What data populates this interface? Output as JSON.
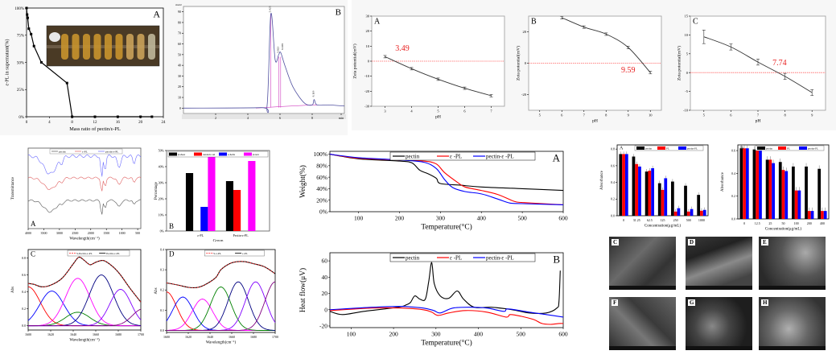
{
  "figure": {
    "panels_top": [
      "A",
      "B",
      "A",
      "B",
      "C"
    ],
    "sem_labels": [
      "C",
      "D",
      "E",
      "F",
      "G",
      "H"
    ]
  },
  "chart_data": [
    {
      "id": "binding",
      "type": "line",
      "panel_label": "A",
      "xlabel": "Mass ratio of pectin/ε-PL",
      "ylabel": "ε-PL in supernatant(%)",
      "xlim": [
        0,
        24
      ],
      "ylim": [
        0,
        100
      ],
      "xticks": [
        "0",
        "4",
        "8",
        "12",
        "16",
        "20",
        "24"
      ],
      "yticks": [
        "0%",
        "25%",
        "50%",
        "75%",
        "100%"
      ],
      "x": [
        0,
        0.1,
        0.2,
        0.4,
        0.8,
        1.3,
        2.6,
        7.1,
        8,
        12,
        16,
        20,
        22
      ],
      "y": [
        100,
        94,
        91,
        81,
        76,
        65,
        50,
        31,
        0,
        0,
        0,
        0,
        0
      ],
      "inset": "photo of test tubes"
    },
    {
      "id": "chromatogram",
      "type": "line",
      "panel_label": "B",
      "ylabel": "mAU",
      "xlim": [
        0,
        10
      ],
      "ylim": [
        -5,
        95
      ],
      "yticks": [
        "0",
        "10",
        "20",
        "30",
        "40",
        "50",
        "60",
        "70",
        "80",
        "90"
      ],
      "xticks": [
        "2",
        "4",
        "6",
        "8",
        "min"
      ],
      "peak_labels": [
        "5.425",
        "5.923",
        "6.039",
        "8.118"
      ],
      "x": [
        0,
        4.8,
        5.2,
        5.43,
        5.7,
        5.92,
        6.04,
        6.3,
        6.8,
        7.5,
        8.0,
        8.12,
        8.3,
        9,
        10
      ],
      "y": [
        0,
        0.5,
        3,
        88,
        45,
        50,
        52,
        40,
        20,
        5,
        3,
        8,
        3,
        3,
        2
      ]
    },
    {
      "id": "zeta_A",
      "type": "line",
      "panel_label": "A",
      "xlabel": "pH",
      "ylabel": "Zeta potential(mV)",
      "xlim": [
        2.5,
        7.5
      ],
      "ylim": [
        -30,
        30
      ],
      "xticks": [
        "3",
        "4",
        "5",
        "6",
        "7"
      ],
      "yticks": [
        "-30",
        "-20",
        "-10",
        "0",
        "10",
        "20",
        "30"
      ],
      "x": [
        3,
        4,
        5,
        6,
        7
      ],
      "y": [
        3,
        -5,
        -12,
        -18,
        -23
      ],
      "annotation": "3.49",
      "zero_line": true
    },
    {
      "id": "zeta_B",
      "type": "line",
      "panel_label": "B",
      "xlabel": "pH",
      "ylabel": "Zeta potential(mV)",
      "xlim": [
        4.5,
        10.5
      ],
      "ylim": [
        -30,
        30
      ],
      "xticks": [
        "5",
        "6",
        "7",
        "8",
        "9",
        "10"
      ],
      "yticks": [
        "-20",
        "0",
        "20"
      ],
      "x": [
        6,
        7,
        8,
        9,
        10
      ],
      "y": [
        29,
        23,
        18.5,
        10,
        -6
      ],
      "annotation": "9.59",
      "zero_line": true
    },
    {
      "id": "zeta_C",
      "type": "line",
      "panel_label": "C",
      "xlabel": "pH",
      "ylabel": "Zeta potential(mV)",
      "xlim": [
        4.5,
        9.5
      ],
      "ylim": [
        -10,
        15
      ],
      "xticks": [
        "5",
        "6",
        "7",
        "8",
        "9"
      ],
      "yticks": [
        "-10",
        "-5",
        "0",
        "5",
        "10",
        "15"
      ],
      "x": [
        5,
        6,
        7,
        8,
        9
      ],
      "y": [
        9.5,
        6.8,
        2.8,
        -1,
        -5.3
      ],
      "annotation": "7.74",
      "zero_line": true
    },
    {
      "id": "ftir",
      "type": "line",
      "panel_label": "A",
      "xlabel": "Wavelength(cm⁻¹)",
      "ylabel": "Transmittance",
      "xticks": [
        "4000",
        "3500",
        "3000",
        "2500",
        "2000",
        "1500",
        "1000",
        "500"
      ],
      "legend": [
        "pectin",
        "ε-PL",
        "pectin-ε-PL"
      ],
      "series_colors": [
        "#555555",
        "#e06060",
        "#6b6bff"
      ]
    },
    {
      "id": "secondary",
      "type": "bar",
      "panel_label": "B",
      "xlabel": "Group",
      "ylabel": "Percentage",
      "categories": [
        "ε-PL",
        "Pectin-ε-PL"
      ],
      "yticks": [
        "0%",
        "10%",
        "20%",
        "30%",
        "40%",
        "50%"
      ],
      "ylim": [
        0,
        50
      ],
      "series": [
        {
          "name": "β-sheet",
          "color": "#000000",
          "values": [
            36,
            31
          ]
        },
        {
          "name": "random coil",
          "color": "#ff0000",
          "values": [
            0,
            25.5
          ]
        },
        {
          "name": "α-helix",
          "color": "#0000ff",
          "values": [
            15,
            0
          ]
        },
        {
          "name": "β-turn",
          "color": "#ff00ff",
          "values": [
            49.5,
            43.5
          ]
        }
      ]
    },
    {
      "id": "fit_C",
      "type": "line",
      "panel_label": "C",
      "xlabel": "Wavelength(cm⁻¹)",
      "ylabel": "Abs",
      "xlim": [
        1600,
        1700
      ],
      "ylim": [
        -0.05,
        0.9
      ],
      "xticks": [
        "1600",
        "1620",
        "1640",
        "1660",
        "1680",
        "1700"
      ],
      "yticks": [
        "0.0",
        "0.2",
        "0.4",
        "0.6",
        "0.8"
      ],
      "legend": [
        "S-Pectin-ε-PL",
        "Pectin-ε-PL"
      ],
      "envelope": {
        "x": [
          1600,
          1605,
          1612,
          1620,
          1630,
          1640,
          1645,
          1650,
          1655,
          1660,
          1667,
          1675,
          1682,
          1690,
          1700
        ],
        "y": [
          0.5,
          0.49,
          0.46,
          0.48,
          0.56,
          0.73,
          0.81,
          0.77,
          0.72,
          0.75,
          0.77,
          0.7,
          0.6,
          0.45,
          0.28
        ]
      },
      "gaussians": [
        {
          "center": 1600,
          "height": 0.46,
          "width": 8,
          "color": "#ff0000"
        },
        {
          "center": 1621,
          "height": 0.41,
          "width": 8,
          "color": "#0000ff"
        },
        {
          "center": 1644,
          "height": 0.16,
          "width": 8,
          "color": "#008000"
        },
        {
          "center": 1644,
          "height": 0.56,
          "width": 8,
          "color": "#ff00ff"
        },
        {
          "center": 1665,
          "height": 0.6,
          "width": 8,
          "color": "#000080"
        },
        {
          "center": 1682,
          "height": 0.43,
          "width": 7,
          "color": "#8000ff"
        },
        {
          "center": 1702,
          "height": 0.2,
          "width": 7,
          "color": "#800080"
        }
      ]
    },
    {
      "id": "fit_D",
      "type": "line",
      "panel_label": "D",
      "xlabel": "Wavelength(cm⁻¹)",
      "ylabel": "Abs",
      "xlim": [
        1600,
        1700
      ],
      "ylim": [
        -0.01,
        0.4
      ],
      "xticks": [
        "1600",
        "1620",
        "1640",
        "1660",
        "1680",
        "1700"
      ],
      "yticks": [
        "0.0",
        "0.1",
        "0.2",
        "0.3",
        "0.4"
      ],
      "legend": [
        "S-ε-PL",
        "ε-PL"
      ],
      "envelope": {
        "x": [
          1600,
          1610,
          1620,
          1628,
          1635,
          1645,
          1650,
          1658,
          1665,
          1672,
          1680,
          1690,
          1700
        ],
        "y": [
          0.235,
          0.225,
          0.213,
          0.212,
          0.225,
          0.26,
          0.3,
          0.33,
          0.34,
          0.34,
          0.33,
          0.315,
          0.28
        ]
      },
      "gaussians": [
        {
          "center": 1600,
          "height": 0.19,
          "width": 7,
          "color": "#ff0000"
        },
        {
          "center": 1615,
          "height": 0.165,
          "width": 7,
          "color": "#0000ff"
        },
        {
          "center": 1633,
          "height": 0.155,
          "width": 7,
          "color": "#ff00ff"
        },
        {
          "center": 1650,
          "height": 0.215,
          "width": 7,
          "color": "#008000"
        },
        {
          "center": 1666,
          "height": 0.24,
          "width": 7,
          "color": "#000080"
        },
        {
          "center": 1682,
          "height": 0.24,
          "width": 7,
          "color": "#8000ff"
        },
        {
          "center": 1700,
          "height": 0.24,
          "width": 7,
          "color": "#800080"
        }
      ]
    },
    {
      "id": "tga",
      "type": "line",
      "panel_label": "A",
      "xlabel": "Temperature(°C)",
      "ylabel": "Weight(%)",
      "xlim": [
        30,
        600
      ],
      "ylim": [
        0,
        105
      ],
      "xticks": [
        "100",
        "200",
        "300",
        "400",
        "500",
        "600"
      ],
      "yticks": [
        "0%",
        "20%",
        "40%",
        "60%",
        "80%",
        "100%"
      ],
      "series": [
        {
          "name": "pectin",
          "color": "#000000",
          "x": [
            30,
            100,
            200,
            230,
            250,
            270,
            290,
            300,
            350,
            400,
            500,
            600
          ],
          "y": [
            100,
            92,
            88,
            85,
            72,
            66,
            58,
            49,
            46,
            43,
            40,
            37
          ]
        },
        {
          "name": "ε -PL",
          "color": "#ff0000",
          "x": [
            30,
            100,
            200,
            260,
            290,
            310,
            340,
            360,
            400,
            440,
            480,
            500,
            550,
            600
          ],
          "y": [
            100,
            93,
            90,
            88,
            83,
            68,
            52,
            43,
            37,
            30,
            18,
            16,
            14,
            12
          ]
        },
        {
          "name": "pectin-ε -PL",
          "color": "#0000ff",
          "x": [
            30,
            100,
            200,
            260,
            290,
            310,
            330,
            360,
            400,
            440,
            470,
            500,
            600
          ],
          "y": [
            100,
            94,
            90,
            86,
            75,
            56,
            42,
            35,
            31,
            22,
            15,
            14,
            12
          ]
        }
      ]
    },
    {
      "id": "dsc",
      "type": "line",
      "panel_label": "B",
      "xlabel": "Temperature(°C)",
      "ylabel": "Heat flow(μV)",
      "xlim": [
        50,
        600
      ],
      "ylim": [
        -22,
        70
      ],
      "xticks": [
        "100",
        "200",
        "300",
        "400",
        "500",
        "600"
      ],
      "yticks": [
        "-20",
        "0",
        "20",
        "40",
        "60"
      ],
      "series": [
        {
          "name": "pectin",
          "color": "#000000",
          "x": [
            50,
            80,
            130,
            210,
            230,
            240,
            250,
            262,
            275,
            283,
            290,
            296,
            310,
            330,
            350,
            365,
            390,
            430,
            480,
            520,
            560,
            585,
            590,
            593
          ],
          "y": [
            -2,
            -6,
            -2,
            3,
            6,
            9,
            17,
            13,
            13,
            35,
            58,
            32,
            17,
            14,
            23,
            13,
            3,
            3,
            0,
            -4,
            -4,
            2,
            10,
            48
          ]
        },
        {
          "name": "ε -PL",
          "color": "#ff0000",
          "x": [
            50,
            150,
            220,
            270,
            290,
            305,
            330,
            370,
            420,
            465,
            475,
            500,
            530,
            550,
            570,
            590,
            600
          ],
          "y": [
            -1,
            2,
            2,
            0,
            -3,
            -7,
            -4,
            -1,
            -3,
            -9,
            -6,
            -8,
            -12,
            -17,
            -18,
            -17,
            -17
          ]
        },
        {
          "name": "pectin-ε -PL",
          "color": "#0000ff",
          "x": [
            50,
            150,
            220,
            270,
            295,
            310,
            340,
            380,
            420,
            460,
            470,
            520,
            560,
            600
          ],
          "y": [
            0,
            3,
            4,
            2,
            -1,
            -4,
            2,
            3,
            2,
            -2,
            1,
            -3,
            -6,
            -9
          ]
        }
      ]
    },
    {
      "id": "absorbance_A",
      "type": "bar",
      "panel_label": "A",
      "xlabel": "Concentration(μg/mL)",
      "ylabel": "Absorbance",
      "ylim": [
        0,
        0.85
      ],
      "yticks": [
        "0.0",
        "0.2",
        "0.4",
        "0.6",
        "0.8"
      ],
      "categories": [
        "0",
        "31.25",
        "62.5",
        "125",
        "250",
        "500",
        "1000"
      ],
      "series": [
        {
          "name": "pectin",
          "color": "#000000",
          "values": [
            0.74,
            0.71,
            0.53,
            0.39,
            0.41,
            0.36,
            0.25
          ]
        },
        {
          "name": "PL",
          "color": "#ff0000",
          "values": [
            0.74,
            0.62,
            0.54,
            0.31,
            0.05,
            0.05,
            0.06
          ]
        },
        {
          "name": "pectin-PL",
          "color": "#0000ff",
          "values": [
            0.74,
            0.59,
            0.57,
            0.45,
            0.09,
            0.08,
            0.07
          ]
        }
      ]
    },
    {
      "id": "absorbance_B",
      "type": "bar",
      "panel_label": "B",
      "xlabel": "Concentration(μg/mL)",
      "ylabel": "Absorbance",
      "ylim": [
        0,
        0.65
      ],
      "yticks": [
        "0.0",
        "0.2",
        "0.4",
        "0.6"
      ],
      "categories": [
        "0",
        "12.5",
        "25",
        "50",
        "100",
        "200",
        "400"
      ],
      "series": [
        {
          "name": "pectin",
          "color": "#000000",
          "values": [
            0.62,
            0.61,
            0.52,
            0.5,
            0.46,
            0.46,
            0.44
          ]
        },
        {
          "name": "PL",
          "color": "#ff0000",
          "values": [
            0.62,
            0.6,
            0.52,
            0.43,
            0.25,
            0.07,
            0.07
          ]
        },
        {
          "name": "pectin-PL",
          "color": "#0000ff",
          "values": [
            0.62,
            0.6,
            0.49,
            0.42,
            0.25,
            0.07,
            0.07
          ]
        }
      ]
    }
  ]
}
